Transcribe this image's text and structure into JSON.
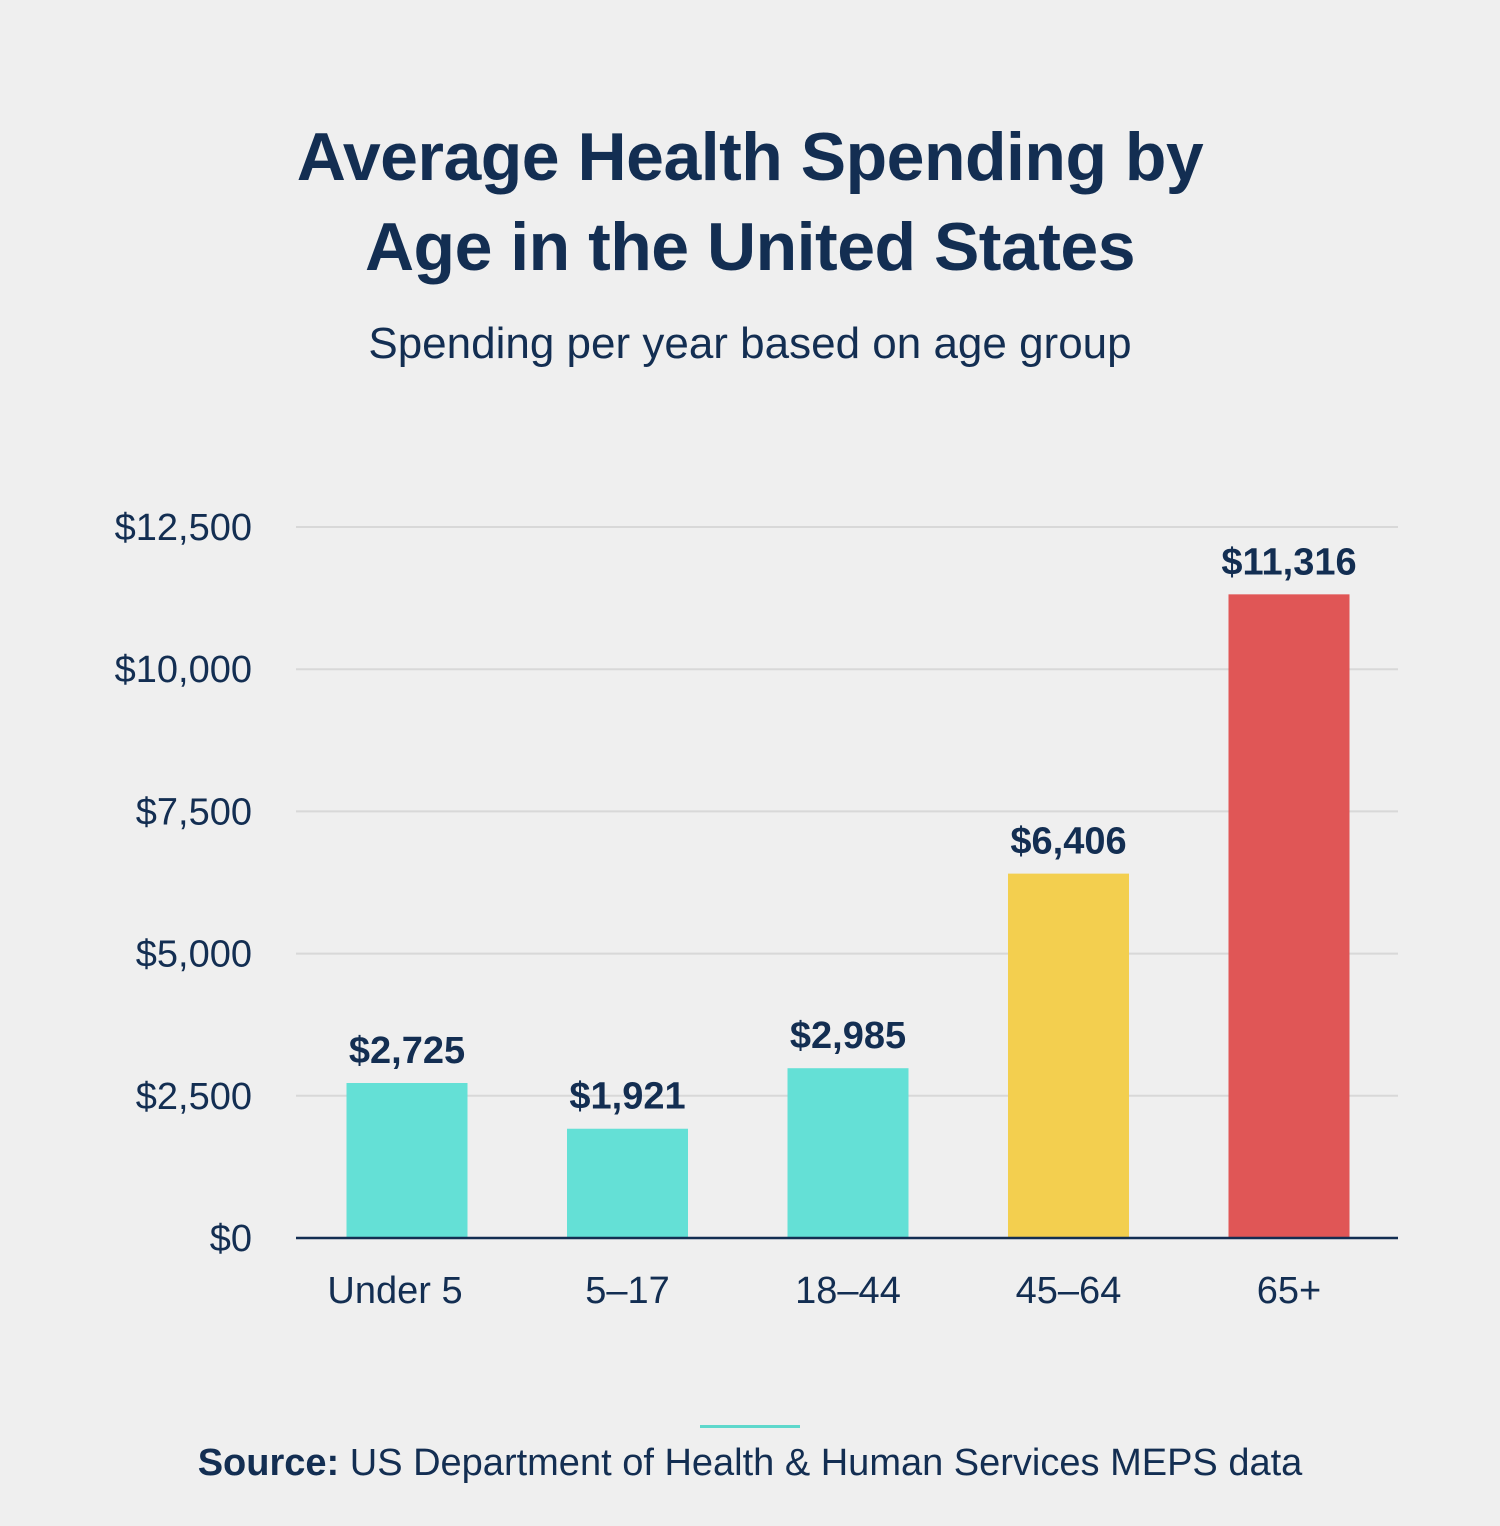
{
  "header": {
    "title_line1": "Average Health Spending by",
    "title_line2": "Age in the United States",
    "subtitle": "Spending per year based on age group"
  },
  "footer": {
    "source_label": "Source:",
    "source_text": "US Department of Health & Human Services MEPS data"
  },
  "colors": {
    "teal": "#64e0d6",
    "yellow": "#f3cf4f",
    "red": "#e05656",
    "axis": "#132e52",
    "grid": "#d8d8d8"
  },
  "chart_data": {
    "type": "bar",
    "title": "Average Health Spending by Age in the United States",
    "subtitle": "Spending per year based on age group",
    "xlabel": "",
    "ylabel": "",
    "ylim": [
      0,
      12500
    ],
    "yticks": [
      0,
      2500,
      5000,
      7500,
      10000,
      12500
    ],
    "ytick_labels": [
      "$0",
      "$2,500",
      "$5,000",
      "$7,500",
      "$10,000",
      "$12,500"
    ],
    "grid": true,
    "categories": [
      "Under 5",
      "5–17",
      "18–44",
      "45–64",
      "65+"
    ],
    "values": [
      2725,
      1921,
      2985,
      6406,
      11316
    ],
    "value_labels": [
      "$2,725",
      "$1,921",
      "$2,985",
      "$6,406",
      "$11,316"
    ],
    "bar_colors": [
      "#64e0d6",
      "#64e0d6",
      "#64e0d6",
      "#f3cf4f",
      "#e05656"
    ]
  }
}
